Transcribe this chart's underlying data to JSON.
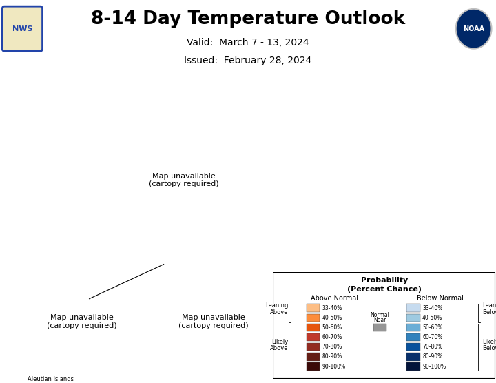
{
  "title": "8-14 Day Temperature Outlook",
  "valid_line": "Valid:  March 7 - 13, 2024",
  "issued_line": "Issued:  February 28, 2024",
  "bg_color": "#ffffff",
  "ocean_color": "#ffffff",
  "state_edge": "#666666",
  "country_edge": "#333333",
  "zone_colors": {
    "below_ec": "#6baed6",
    "below_wc": "#9ecae1",
    "below_light": "#c6dbef",
    "near_normal": "#969696",
    "above_33": "#fdbe85",
    "above_40": "#fd8d3c",
    "above_50": "#e6550d",
    "above_60": "#c0392b",
    "above_70": "#922b21",
    "above_80": "#641e16"
  },
  "legend": {
    "title1": "Probability",
    "title2": "(Percent Chance)",
    "above_colors": [
      "#fdbe85",
      "#fd8d3c",
      "#e6550d",
      "#c0392b",
      "#922b21",
      "#641e16",
      "#3b0a08"
    ],
    "below_colors": [
      "#c6dbef",
      "#9ecae1",
      "#6baed6",
      "#3182bd",
      "#08519c",
      "#08306b",
      "#03143a"
    ],
    "near_normal_color": "#969696",
    "above_pcts": [
      "33-40%",
      "40-50%",
      "50-60%",
      "60-70%",
      "70-80%",
      "80-90%",
      "90-100%"
    ],
    "below_pcts": [
      "33-40%",
      "40-50%",
      "50-60%",
      "60-70%",
      "70-80%",
      "80-90%",
      "90-100%"
    ]
  }
}
